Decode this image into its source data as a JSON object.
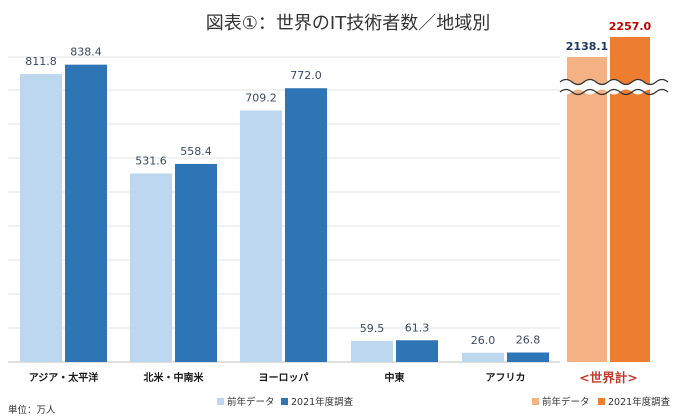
{
  "chart_data": {
    "type": "bar",
    "title": "図表①：世界のIT技術者数／地域別",
    "unit_note": "単位：万人",
    "categories": [
      "アジア・太平洋",
      "北米・中南米",
      "ヨーロッパ",
      "中東",
      "アフリカ"
    ],
    "series": [
      {
        "name": "前年データ",
        "values": [
          811.8,
          531.6,
          709.2,
          59.5,
          26.0
        ],
        "color": "#bdd7ee"
      },
      {
        "name": "2021年度調査",
        "values": [
          838.4,
          558.4,
          772.0,
          61.3,
          26.8
        ],
        "color": "#2e75b6"
      }
    ],
    "ylim": [
      0,
      860
    ],
    "grid": true,
    "legend_position": "bottom",
    "total": {
      "label": "<世界計>",
      "axis_break": true,
      "series": [
        {
          "name": "前年データ",
          "value": 2138.1,
          "color": "#f4b183",
          "label_color": "#1f3864"
        },
        {
          "name": "2021年度調査",
          "value": 2257.0,
          "color": "#ed7d31",
          "label_color": "#c00000"
        }
      ]
    },
    "value_format": "0.0"
  }
}
